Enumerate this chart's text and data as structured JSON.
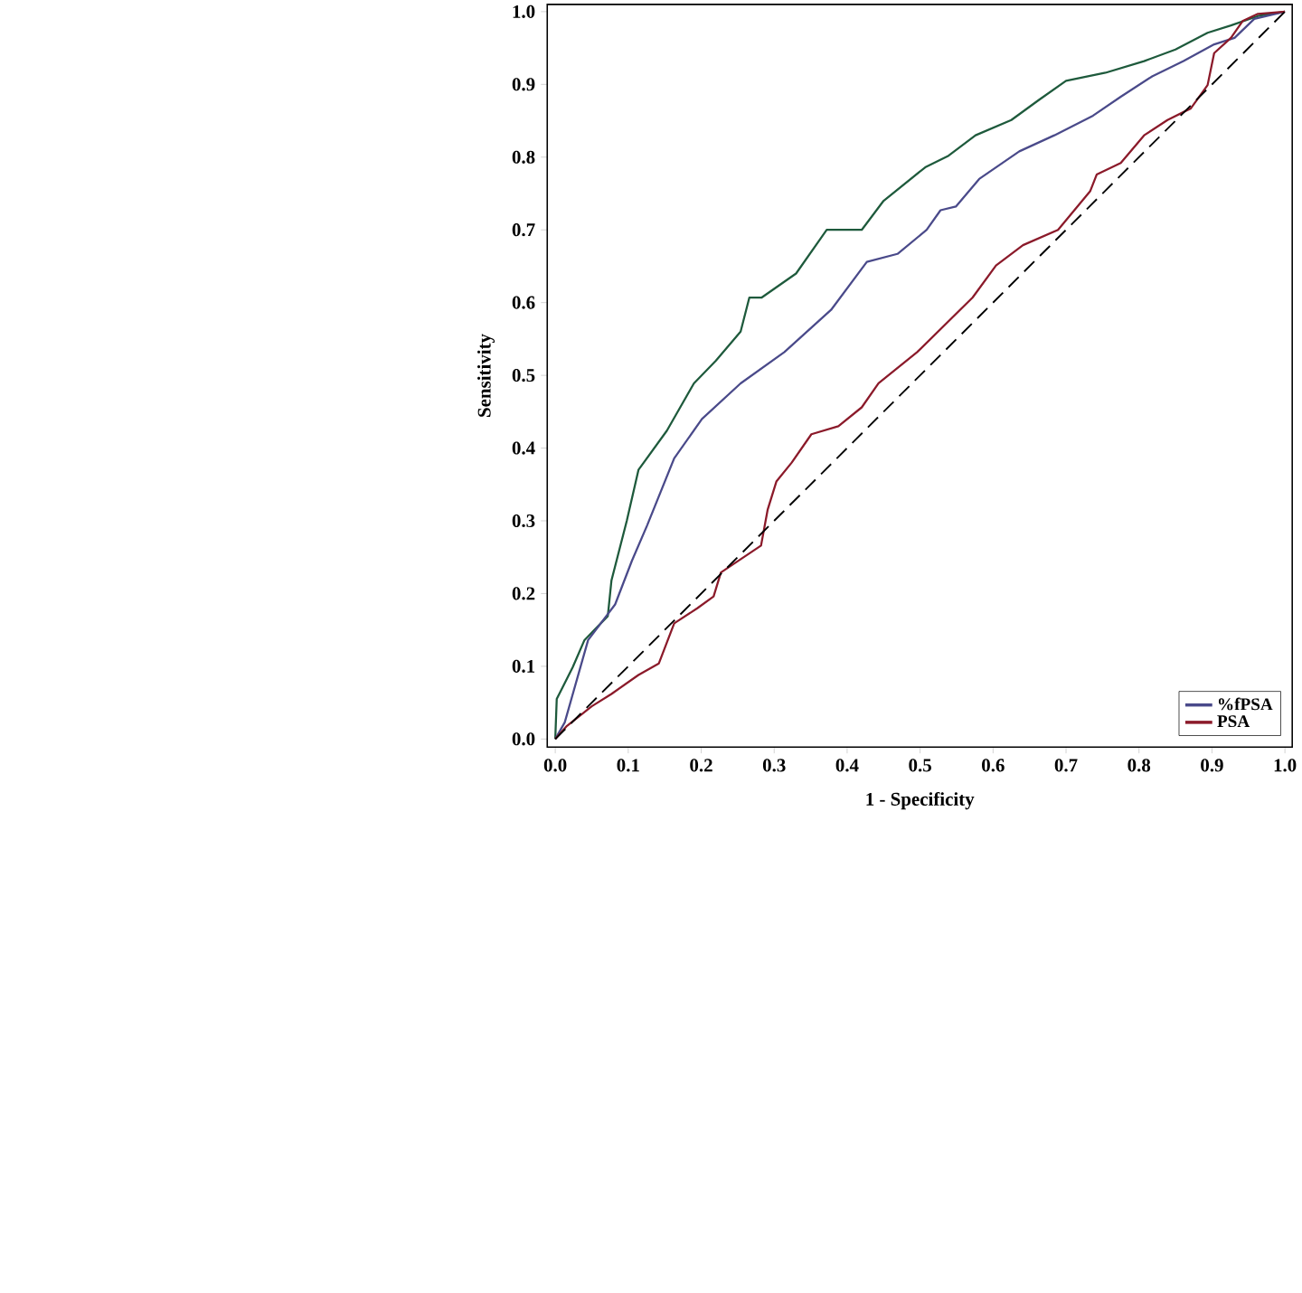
{
  "chart_data": {
    "type": "line",
    "xlabel": "1 - Specificity",
    "ylabel": "Sensitivity",
    "xlim": [
      -0.011,
      1.01
    ],
    "ylim": [
      -0.011,
      1.01
    ],
    "xticks": [
      {
        "value": 0,
        "label": "0.0"
      },
      0.1,
      0.2,
      0.3,
      0.4,
      0.5,
      0.6,
      0.7,
      0.8,
      0.9,
      {
        "value": 1,
        "label": "1.0"
      }
    ],
    "yticks": [
      {
        "value": 0,
        "label": "0.0"
      },
      0.1,
      0.2,
      0.3,
      0.4,
      0.5,
      0.6,
      0.7,
      0.8,
      0.9,
      {
        "value": 1,
        "label": "1.0"
      }
    ],
    "legend": "bottom right",
    "grid": false,
    "marker": "none",
    "series": [
      {
        "color": "#1e5a3c",
        "x": [
          0,
          0.002,
          0.024,
          0.04,
          0.072,
          0.077,
          0.098,
          0.114,
          0.153,
          0.19,
          0.22,
          0.254,
          0.266,
          0.283,
          0.33,
          0.372,
          0.42,
          0.45,
          0.507,
          0.539,
          0.576,
          0.625,
          0.662,
          0.7,
          0.754,
          0.807,
          0.85,
          0.894,
          0.926,
          0.963,
          1
        ],
        "values": [
          0,
          0.055,
          0.099,
          0.136,
          0.169,
          0.218,
          0.3,
          0.37,
          0.424,
          0.489,
          0.52,
          0.56,
          0.607,
          0.607,
          0.64,
          0.7,
          0.7,
          0.74,
          0.786,
          0.802,
          0.83,
          0.851,
          0.878,
          0.905,
          0.916,
          0.932,
          0.948,
          0.971,
          0.981,
          0.994,
          1
        ]
      },
      {
        "name": "%fPSA",
        "color": "#4a4a8a",
        "x": [
          0,
          0.013,
          0.045,
          0.082,
          0.105,
          0.126,
          0.163,
          0.201,
          0.254,
          0.314,
          0.378,
          0.427,
          0.469,
          0.509,
          0.528,
          0.549,
          0.581,
          0.636,
          0.684,
          0.737,
          0.775,
          0.818,
          0.861,
          0.903,
          0.931,
          0.958,
          1
        ],
        "values": [
          0,
          0.023,
          0.136,
          0.185,
          0.245,
          0.294,
          0.386,
          0.44,
          0.489,
          0.532,
          0.59,
          0.656,
          0.667,
          0.7,
          0.727,
          0.732,
          0.77,
          0.808,
          0.83,
          0.857,
          0.883,
          0.911,
          0.932,
          0.955,
          0.964,
          0.99,
          1
        ]
      },
      {
        "name": "PSA",
        "color": "#8b1a2a",
        "x": [
          0,
          0.016,
          0.05,
          0.077,
          0.114,
          0.142,
          0.163,
          0.195,
          0.217,
          0.227,
          0.282,
          0.291,
          0.303,
          0.324,
          0.351,
          0.388,
          0.42,
          0.443,
          0.496,
          0.572,
          0.604,
          0.641,
          0.689,
          0.733,
          0.742,
          0.775,
          0.807,
          0.839,
          0.871,
          0.894,
          0.903,
          0.926,
          0.942,
          0.963,
          1
        ],
        "values": [
          0,
          0.018,
          0.045,
          0.062,
          0.088,
          0.104,
          0.159,
          0.18,
          0.196,
          0.229,
          0.266,
          0.315,
          0.354,
          0.38,
          0.419,
          0.43,
          0.456,
          0.489,
          0.532,
          0.607,
          0.651,
          0.679,
          0.7,
          0.753,
          0.776,
          0.792,
          0.83,
          0.851,
          0.867,
          0.899,
          0.943,
          0.964,
          0.987,
          0.997,
          1
        ]
      },
      {
        "color": "#000000",
        "line_style": "dashed",
        "x": [
          0,
          1
        ],
        "values": [
          0,
          1
        ]
      }
    ]
  }
}
